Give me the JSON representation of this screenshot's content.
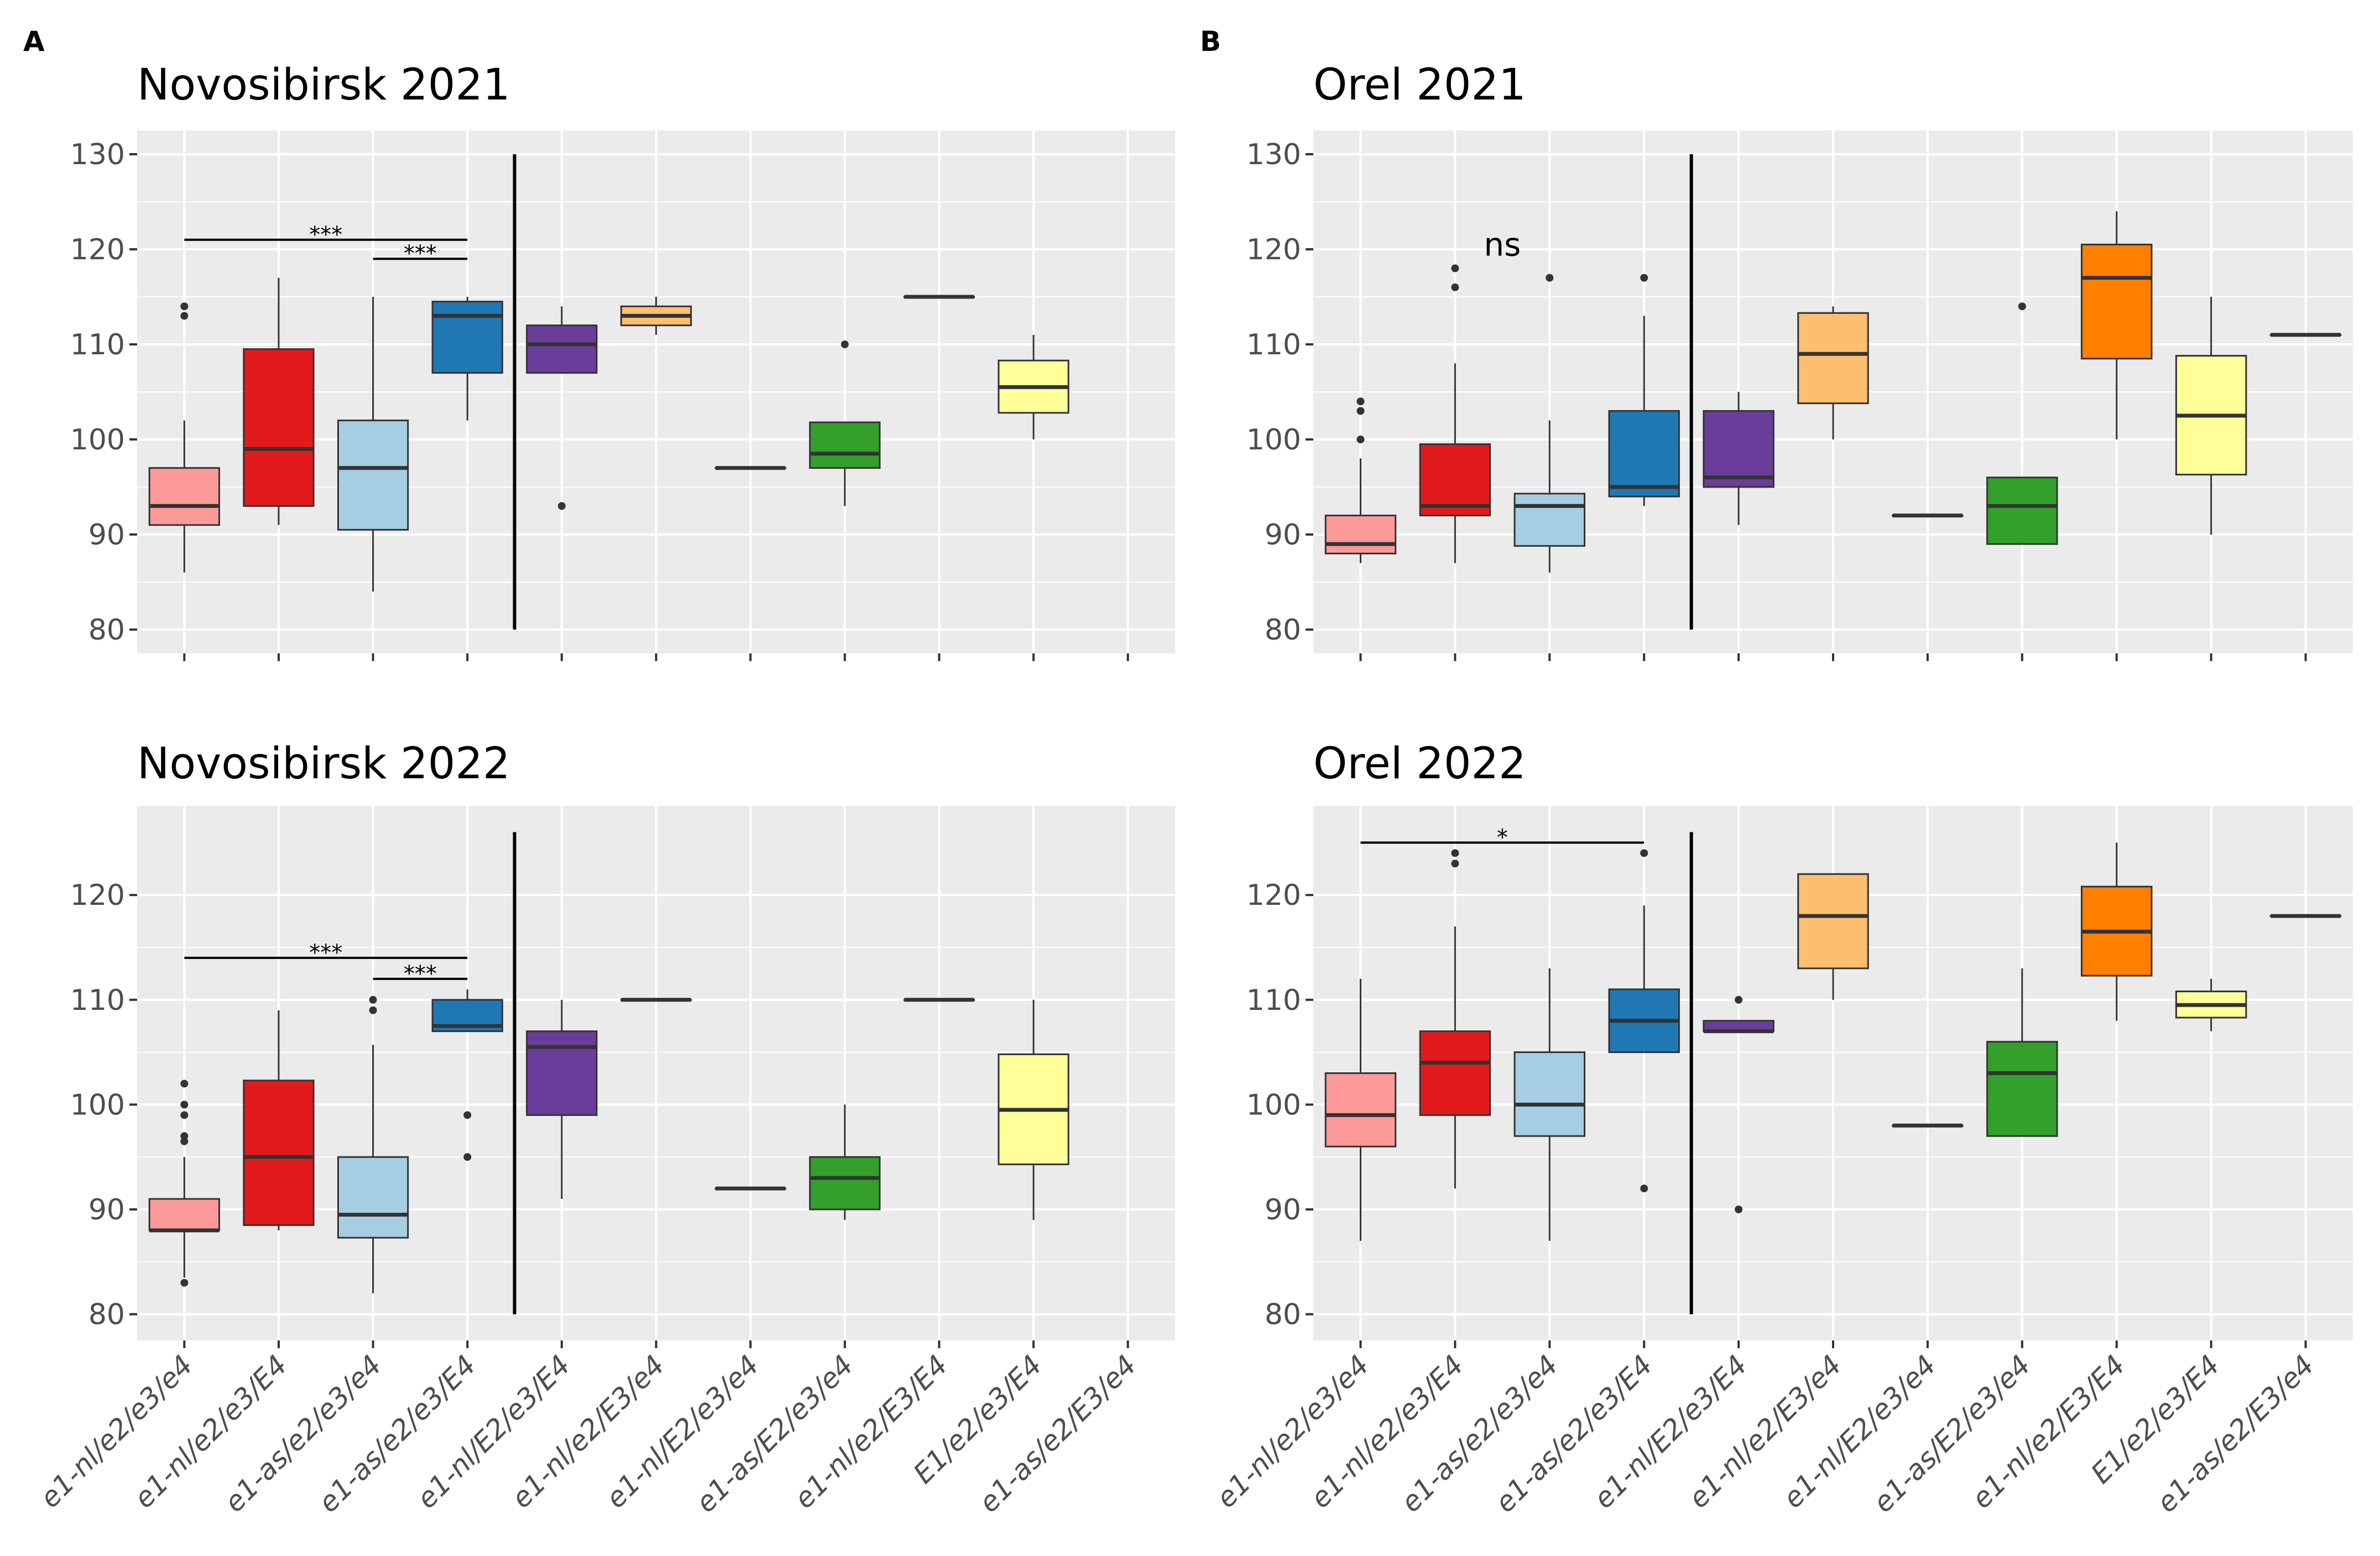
{
  "colors": {
    "e1-nl/e2/e3/e4": "#FB9A99",
    "e1-nl/e2/e3/E4": "#E31A1C",
    "e1-as/e2/e3/e4": "#A6CEE3",
    "e1-as/e2/e3/E4": "#1F78B4",
    "e1-nl/E2/e3/E4": "#6A3D9A",
    "e1-nl/e2/E3/e4": "#FDBF6F",
    "e1-nl/E2/e3/e4": "#B2DF8A",
    "e1-as/E2/e3/e4": "#33A02C",
    "e1-nl/e2/E3/E4": "#FF7F00",
    "E1/e2/e3/E4": "#FFFF99",
    "e1-as/e2/E3/e4": "#CAB2D6",
    "panel_bg": "#EBEBEB",
    "grid": "#FFFFFF"
  },
  "chart_data": [
    {
      "type": "box",
      "panel_letter": "A",
      "title": "Novosibirsk 2021",
      "xlabel": "",
      "ylabel": "",
      "ylim": [
        77.5,
        132.5
      ],
      "yticks": [
        80,
        90,
        100,
        110,
        120,
        130
      ],
      "show_x_labels": false,
      "categories": [
        "e1-nl/e2/e3/e4",
        "e1-nl/e2/e3/E4",
        "e1-as/e2/e3/e4",
        "e1-as/e2/e3/E4",
        "e1-nl/E2/e3/E4",
        "e1-nl/e2/E3/e4",
        "e1-nl/E2/e3/e4",
        "e1-as/E2/e3/e4",
        "e1-nl/e2/E3/E4",
        "E1/e2/e3/E4",
        "e1-as/e2/E3/e4"
      ],
      "boxes": [
        {
          "category": "e1-nl/e2/e3/e4",
          "q1": 91,
          "median": 93,
          "q3": 97,
          "lo": 86,
          "hi": 102,
          "outliers": [
            113,
            114
          ]
        },
        {
          "category": "e1-nl/e2/e3/E4",
          "q1": 93,
          "median": 99,
          "q3": 109.5,
          "lo": 91,
          "hi": 117,
          "outliers": []
        },
        {
          "category": "e1-as/e2/e3/e4",
          "q1": 90.5,
          "median": 97,
          "q3": 102,
          "lo": 84,
          "hi": 115,
          "outliers": []
        },
        {
          "category": "e1-as/e2/e3/E4",
          "q1": 107,
          "median": 113,
          "q3": 114.5,
          "lo": 102,
          "hi": 115,
          "outliers": []
        },
        {
          "category": "e1-nl/E2/e3/E4",
          "q1": 107,
          "median": 110,
          "q3": 112,
          "lo": 107,
          "hi": 114,
          "outliers": [
            93
          ]
        },
        {
          "category": "e1-nl/e2/E3/e4",
          "q1": 112,
          "median": 113,
          "q3": 114,
          "lo": 111,
          "hi": 115,
          "outliers": []
        },
        {
          "category": "e1-nl/E2/e3/e4",
          "q1": 97,
          "median": 97,
          "q3": 97,
          "lo": 97,
          "hi": 97,
          "outliers": []
        },
        {
          "category": "e1-as/E2/e3/e4",
          "q1": 97,
          "median": 98.5,
          "q3": 101.8,
          "lo": 93,
          "hi": 101.8,
          "outliers": [
            110
          ]
        },
        {
          "category": "e1-nl/e2/E3/E4",
          "q1": 115,
          "median": 115,
          "q3": 115,
          "lo": 115,
          "hi": 115,
          "outliers": []
        },
        {
          "category": "E1/e2/e3/E4",
          "q1": 102.8,
          "median": 105.5,
          "q3": 108.3,
          "lo": 100,
          "hi": 111,
          "outliers": []
        }
      ],
      "divider": {
        "after_index": 3,
        "ymin": 80,
        "ymax": 130
      },
      "annotations": [
        {
          "label": "***",
          "from_index": 0,
          "to_index": 3,
          "y": 121
        },
        {
          "label": "***",
          "from_index": 2,
          "to_index": 3,
          "y": 119
        }
      ]
    },
    {
      "type": "box",
      "panel_letter": "B",
      "title": "Orel 2021",
      "xlabel": "",
      "ylabel": "",
      "ylim": [
        77.5,
        132.5
      ],
      "yticks": [
        80,
        90,
        100,
        110,
        120,
        130
      ],
      "show_x_labels": false,
      "categories": [
        "e1-nl/e2/e3/e4",
        "e1-nl/e2/e3/E4",
        "e1-as/e2/e3/e4",
        "e1-as/e2/e3/E4",
        "e1-nl/E2/e3/E4",
        "e1-nl/e2/E3/e4",
        "e1-nl/E2/e3/e4",
        "e1-as/E2/e3/e4",
        "e1-nl/e2/E3/E4",
        "E1/e2/e3/E4",
        "e1-as/e2/E3/e4"
      ],
      "boxes": [
        {
          "category": "e1-nl/e2/e3/e4",
          "q1": 88,
          "median": 89,
          "q3": 92,
          "lo": 87,
          "hi": 98,
          "outliers": [
            100,
            103,
            104
          ]
        },
        {
          "category": "e1-nl/e2/e3/E4",
          "q1": 92,
          "median": 93,
          "q3": 99.5,
          "lo": 87,
          "hi": 108,
          "outliers": [
            116,
            118
          ]
        },
        {
          "category": "e1-as/e2/e3/e4",
          "q1": 88.8,
          "median": 93,
          "q3": 94.3,
          "lo": 86,
          "hi": 102,
          "outliers": [
            117
          ]
        },
        {
          "category": "e1-as/e2/e3/E4",
          "q1": 94,
          "median": 95,
          "q3": 103,
          "lo": 93,
          "hi": 113,
          "outliers": [
            117
          ]
        },
        {
          "category": "e1-nl/E2/e3/E4",
          "q1": 95,
          "median": 96,
          "q3": 103,
          "lo": 91,
          "hi": 105,
          "outliers": []
        },
        {
          "category": "e1-nl/e2/E3/e4",
          "q1": 103.8,
          "median": 109,
          "q3": 113.3,
          "lo": 100,
          "hi": 114,
          "outliers": []
        },
        {
          "category": "e1-nl/E2/e3/e4",
          "q1": 92,
          "median": 92,
          "q3": 92,
          "lo": 92,
          "hi": 92,
          "outliers": []
        },
        {
          "category": "e1-as/E2/e3/e4",
          "q1": 89,
          "median": 93,
          "q3": 96,
          "lo": 89,
          "hi": 96,
          "outliers": [
            114
          ]
        },
        {
          "category": "e1-nl/e2/E3/E4",
          "q1": 108.5,
          "median": 117,
          "q3": 120.5,
          "lo": 100,
          "hi": 124,
          "outliers": []
        },
        {
          "category": "E1/e2/e3/E4",
          "q1": 96.3,
          "median": 102.5,
          "q3": 108.8,
          "lo": 90,
          "hi": 115,
          "outliers": []
        },
        {
          "category": "e1-as/e2/E3/e4",
          "q1": 111,
          "median": 111,
          "q3": 111,
          "lo": 111,
          "hi": 111,
          "outliers": []
        }
      ],
      "divider": {
        "after_index": 3,
        "ymin": 80,
        "ymax": 130
      },
      "annotations": [
        {
          "label": "ns",
          "at_index": 1.5,
          "y": 120.5,
          "style": "text"
        }
      ]
    },
    {
      "type": "box",
      "panel_letter": "",
      "title": "Novosibirsk 2022",
      "xlabel": "",
      "ylabel": "",
      "ylim": [
        77.5,
        128.5
      ],
      "yticks": [
        80,
        90,
        100,
        110,
        120
      ],
      "show_x_labels": true,
      "categories": [
        "e1-nl/e2/e3/e4",
        "e1-nl/e2/e3/E4",
        "e1-as/e2/e3/e4",
        "e1-as/e2/e3/E4",
        "e1-nl/E2/e3/E4",
        "e1-nl/e2/E3/e4",
        "e1-nl/E2/e3/e4",
        "e1-as/E2/e3/e4",
        "e1-nl/e2/E3/E4",
        "E1/e2/e3/E4",
        "e1-as/e2/E3/e4"
      ],
      "boxes": [
        {
          "category": "e1-nl/e2/e3/e4",
          "q1": 88,
          "median": 88,
          "q3": 91,
          "lo": 83.5,
          "hi": 95,
          "outliers": [
            83,
            96.5,
            97,
            99,
            100,
            102
          ]
        },
        {
          "category": "e1-nl/e2/e3/E4",
          "q1": 88.5,
          "median": 95,
          "q3": 102.3,
          "lo": 88,
          "hi": 109,
          "outliers": []
        },
        {
          "category": "e1-as/e2/e3/e4",
          "q1": 87.3,
          "median": 89.5,
          "q3": 95,
          "lo": 82,
          "hi": 105.7,
          "outliers": [
            109,
            110
          ]
        },
        {
          "category": "e1-as/e2/e3/E4",
          "q1": 107,
          "median": 107.5,
          "q3": 110,
          "lo": 107,
          "hi": 111,
          "outliers": [
            95,
            99
          ]
        },
        {
          "category": "e1-nl/E2/e3/E4",
          "q1": 99,
          "median": 105.5,
          "q3": 107,
          "lo": 91,
          "hi": 110,
          "outliers": []
        },
        {
          "category": "e1-nl/e2/E3/e4",
          "q1": 110,
          "median": 110,
          "q3": 110,
          "lo": 110,
          "hi": 110,
          "outliers": []
        },
        {
          "category": "e1-nl/E2/e3/e4",
          "q1": 92,
          "median": 92,
          "q3": 92,
          "lo": 92,
          "hi": 92,
          "outliers": []
        },
        {
          "category": "e1-as/E2/e3/e4",
          "q1": 90,
          "median": 93,
          "q3": 95,
          "lo": 89,
          "hi": 100,
          "outliers": []
        },
        {
          "category": "e1-nl/e2/E3/E4",
          "q1": 110,
          "median": 110,
          "q3": 110,
          "lo": 110,
          "hi": 110,
          "outliers": []
        },
        {
          "category": "E1/e2/e3/E4",
          "q1": 94.3,
          "median": 99.5,
          "q3": 104.8,
          "lo": 89,
          "hi": 110,
          "outliers": []
        }
      ],
      "divider": {
        "after_index": 3,
        "ymin": 80,
        "ymax": 126
      },
      "annotations": [
        {
          "label": "***",
          "from_index": 0,
          "to_index": 3,
          "y": 114
        },
        {
          "label": "***",
          "from_index": 2,
          "to_index": 3,
          "y": 112
        }
      ]
    },
    {
      "type": "box",
      "panel_letter": "",
      "title": "Orel 2022",
      "xlabel": "",
      "ylabel": "",
      "ylim": [
        77.5,
        128.5
      ],
      "yticks": [
        80,
        90,
        100,
        110,
        120
      ],
      "show_x_labels": true,
      "categories": [
        "e1-nl/e2/e3/e4",
        "e1-nl/e2/e3/E4",
        "e1-as/e2/e3/e4",
        "e1-as/e2/e3/E4",
        "e1-nl/E2/e3/E4",
        "e1-nl/e2/E3/e4",
        "e1-nl/E2/e3/e4",
        "e1-as/E2/e3/e4",
        "e1-nl/e2/E3/E4",
        "E1/e2/e3/E4",
        "e1-as/e2/E3/e4"
      ],
      "boxes": [
        {
          "category": "e1-nl/e2/e3/e4",
          "q1": 96,
          "median": 99,
          "q3": 103,
          "lo": 87,
          "hi": 112,
          "outliers": []
        },
        {
          "category": "e1-nl/e2/e3/E4",
          "q1": 99,
          "median": 104,
          "q3": 107,
          "lo": 92,
          "hi": 117,
          "outliers": [
            123,
            124
          ]
        },
        {
          "category": "e1-as/e2/e3/e4",
          "q1": 97,
          "median": 100,
          "q3": 105,
          "lo": 87,
          "hi": 113,
          "outliers": []
        },
        {
          "category": "e1-as/e2/e3/E4",
          "q1": 105,
          "median": 108,
          "q3": 111,
          "lo": 105,
          "hi": 119,
          "outliers": [
            92,
            124
          ]
        },
        {
          "category": "e1-nl/E2/e3/E4",
          "q1": 107,
          "median": 107,
          "q3": 108,
          "lo": 107,
          "hi": 108,
          "outliers": [
            90,
            110
          ]
        },
        {
          "category": "e1-nl/e2/E3/e4",
          "q1": 113,
          "median": 118,
          "q3": 122,
          "lo": 110,
          "hi": 122,
          "outliers": []
        },
        {
          "category": "e1-nl/E2/e3/e4",
          "q1": 98,
          "median": 98,
          "q3": 98,
          "lo": 98,
          "hi": 98,
          "outliers": []
        },
        {
          "category": "e1-as/E2/e3/e4",
          "q1": 97,
          "median": 103,
          "q3": 106,
          "lo": 97,
          "hi": 113,
          "outliers": []
        },
        {
          "category": "e1-nl/e2/E3/E4",
          "q1": 112.3,
          "median": 116.5,
          "q3": 120.8,
          "lo": 108,
          "hi": 125,
          "outliers": []
        },
        {
          "category": "E1/e2/e3/E4",
          "q1": 108.3,
          "median": 109.5,
          "q3": 110.8,
          "lo": 107,
          "hi": 112,
          "outliers": []
        },
        {
          "category": "e1-as/e2/E3/e4",
          "q1": 118,
          "median": 118,
          "q3": 118,
          "lo": 118,
          "hi": 118,
          "outliers": []
        }
      ],
      "divider": {
        "after_index": 3,
        "ymin": 80,
        "ymax": 126
      },
      "annotations": [
        {
          "label": "*",
          "from_index": 0,
          "to_index": 3,
          "y": 125
        }
      ]
    }
  ]
}
